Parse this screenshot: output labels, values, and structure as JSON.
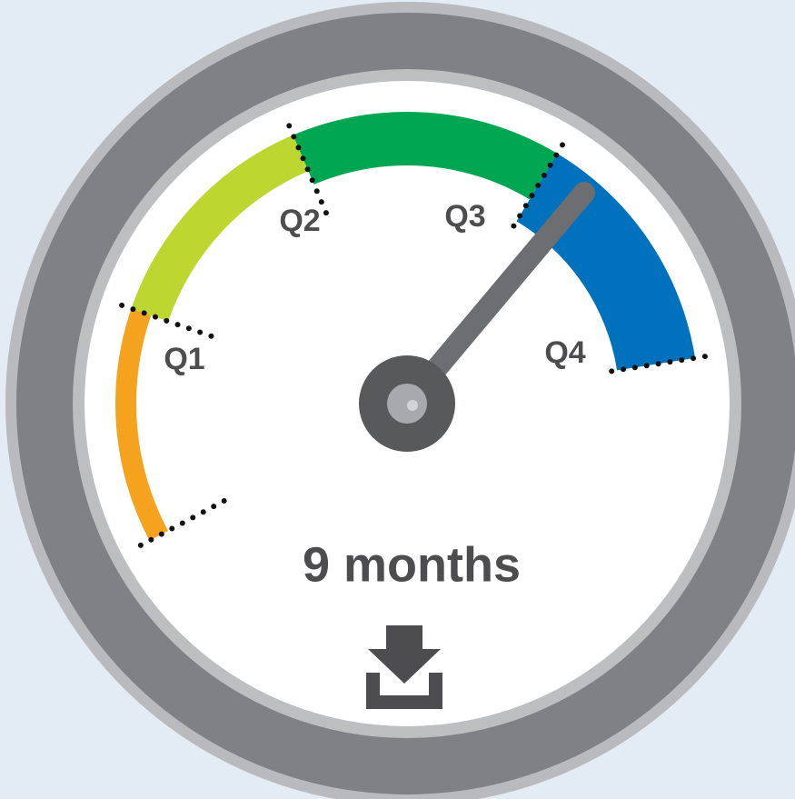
{
  "gauge": {
    "labels": [
      "Q1",
      "Q2",
      "Q3",
      "Q4"
    ],
    "value_text": "9 months"
  }
}
